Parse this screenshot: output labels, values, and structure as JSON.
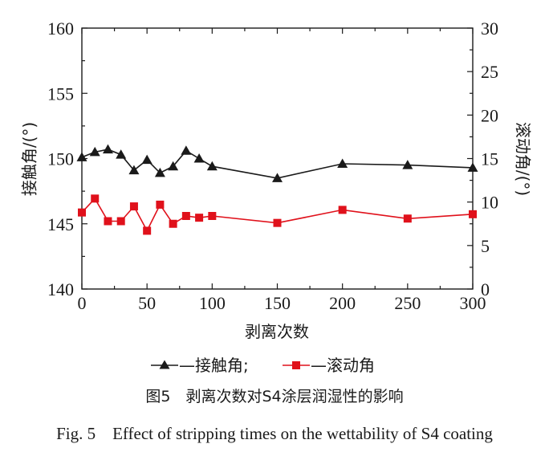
{
  "chart_data": {
    "type": "line",
    "x": [
      0,
      10,
      20,
      30,
      40,
      50,
      60,
      70,
      80,
      90,
      100,
      150,
      200,
      250,
      300
    ],
    "series": [
      {
        "name": "接触角",
        "axis": "left",
        "color": "#1a1a1a",
        "marker": "triangle",
        "values": [
          150.1,
          150.5,
          150.7,
          150.3,
          149.1,
          149.9,
          148.9,
          149.4,
          150.6,
          150.0,
          149.4,
          148.5,
          149.6,
          149.5,
          149.3
        ]
      },
      {
        "name": "滚动角",
        "axis": "right",
        "color": "#e0111b",
        "marker": "square",
        "values": [
          8.8,
          10.4,
          7.8,
          7.8,
          9.5,
          6.7,
          9.7,
          7.5,
          8.4,
          8.2,
          8.4,
          7.6,
          9.1,
          8.1,
          8.6
        ]
      }
    ],
    "xlim": [
      0,
      300
    ],
    "xticks": [
      "0",
      "50",
      "100",
      "150",
      "200",
      "250",
      "300"
    ],
    "ylim_left": [
      140,
      160
    ],
    "yticks_left": [
      "140",
      "145",
      "150",
      "155",
      "160"
    ],
    "ylim_right": [
      0,
      30
    ],
    "yticks_right": [
      "0",
      "5",
      "10",
      "15",
      "20",
      "25",
      "30"
    ],
    "xlabel": "剥离次数",
    "ylabel_left": "接触角/(°)",
    "ylabel_right": "滚动角/(°)",
    "legend": [
      "—接触角;",
      "—滚动角"
    ],
    "caption_cn": "图5　剥离次数对S4涂层润湿性的影响",
    "caption_en": "Fig. 5    Effect of stripping times on the wettability of S4 coating"
  }
}
